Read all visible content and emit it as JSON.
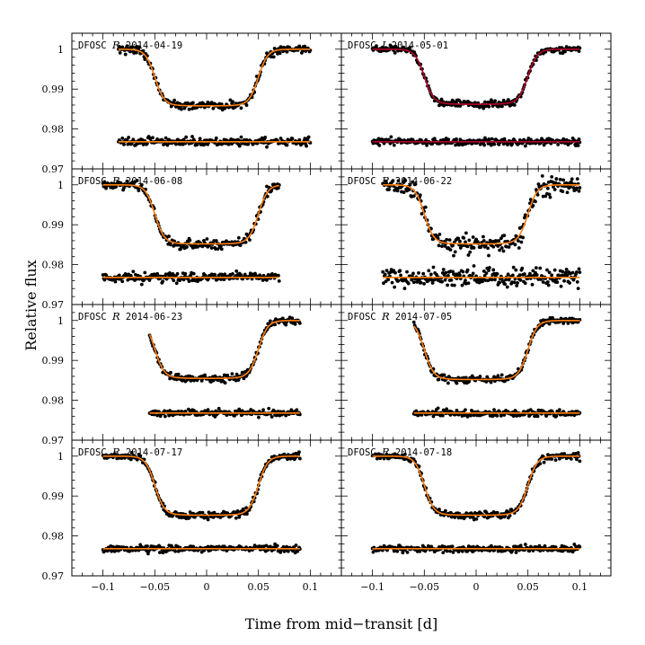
{
  "chart_data": {
    "type": "scatter",
    "xlabel": "Time from mid−transit [d]",
    "ylabel": "Relative flux",
    "xlim": [
      -0.13,
      0.13
    ],
    "ylim": [
      0.97,
      1.004
    ],
    "x_ticks": [
      -0.1,
      -0.05,
      0,
      0.05,
      0.1
    ],
    "x_tick_labels": [
      "−0.1",
      "−0.05",
      "0",
      "0.05",
      "0.1"
    ],
    "y_ticks": [
      0.97,
      0.98,
      0.99,
      1.0
    ],
    "y_tick_labels": [
      "0.97",
      "0.98",
      "0.99",
      "1"
    ],
    "model_colors": [
      "#ff7f0e",
      "#b5002a"
    ],
    "panels": [
      {
        "instrument": "DFOSC",
        "band": "R",
        "date": "2014-04-19",
        "x_range": [
          -0.085,
          0.1
        ],
        "depth": 0.0142,
        "curve_color": "#ff7f0e",
        "residual_offset": 0.9768,
        "scatter": 0.0007
      },
      {
        "instrument": "DFOSC",
        "band": "I",
        "date": "2014-05-01",
        "x_range": [
          -0.1,
          0.1
        ],
        "depth": 0.0138,
        "curve_color": "#b5002a",
        "residual_offset": 0.9768,
        "scatter": 0.0006
      },
      {
        "instrument": "DFOSC",
        "band": "R",
        "date": "2014-06-08",
        "x_range": [
          -0.1,
          0.07
        ],
        "depth": 0.0148,
        "curve_color": "#ff7f0e",
        "residual_offset": 0.9768,
        "scatter": 0.0008
      },
      {
        "instrument": "DFOSC",
        "band": "R",
        "date": "2014-06-22",
        "x_range": [
          -0.09,
          0.1
        ],
        "depth": 0.0148,
        "curve_color": "#ff7f0e",
        "residual_offset": 0.9768,
        "scatter": 0.0016
      },
      {
        "instrument": "DFOSC",
        "band": "R",
        "date": "2014-06-23",
        "x_range": [
          -0.055,
          0.09
        ],
        "depth": 0.0145,
        "curve_color": "#ff7f0e",
        "residual_offset": 0.9768,
        "scatter": 0.0006
      },
      {
        "instrument": "DFOSC",
        "band": "R",
        "date": "2014-07-05",
        "x_range": [
          -0.06,
          0.1
        ],
        "depth": 0.0148,
        "curve_color": "#ff7f0e",
        "residual_offset": 0.9768,
        "scatter": 0.0006
      },
      {
        "instrument": "DFOSC",
        "band": "R",
        "date": "2014-07-17",
        "x_range": [
          -0.1,
          0.09
        ],
        "depth": 0.0148,
        "curve_color": "#ff7f0e",
        "residual_offset": 0.9768,
        "scatter": 0.0006
      },
      {
        "instrument": "DFOSC",
        "band": "R",
        "date": "2014-07-18",
        "x_range": [
          -0.1,
          0.1
        ],
        "depth": 0.0148,
        "curve_color": "#ff7f0e",
        "residual_offset": 0.9768,
        "scatter": 0.0006
      }
    ]
  }
}
